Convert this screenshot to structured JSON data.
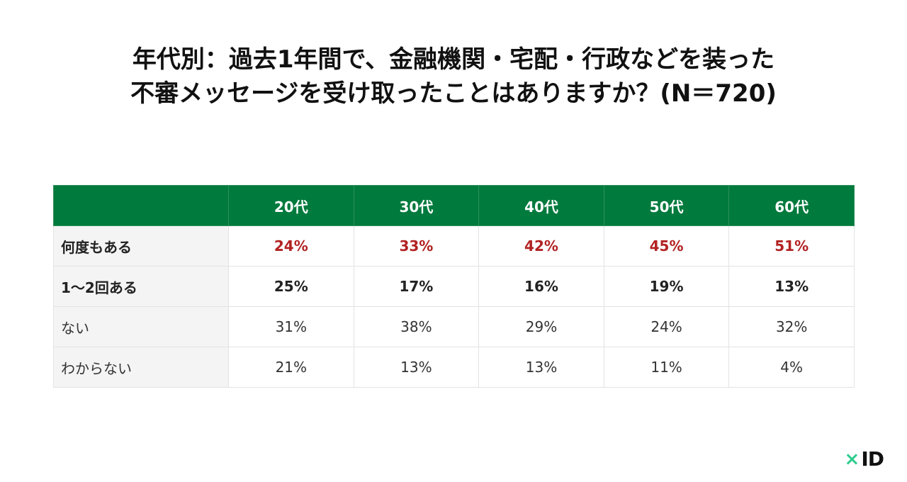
{
  "title": {
    "line1": "年代別：過去1年間で、金融機関・宅配・行政などを装った",
    "line2": "不審メッセージを受け取ったことはありますか？(N＝720)"
  },
  "chart_data": {
    "type": "table",
    "columns": [
      "20代",
      "30代",
      "40代",
      "50代",
      "60代"
    ],
    "rows": [
      {
        "label": "何度もある",
        "values": [
          "24%",
          "33%",
          "42%",
          "45%",
          "51%"
        ]
      },
      {
        "label": "1〜2回ある",
        "values": [
          "25%",
          "17%",
          "16%",
          "19%",
          "13%"
        ]
      },
      {
        "label": "ない",
        "values": [
          "31%",
          "38%",
          "29%",
          "24%",
          "32%"
        ]
      },
      {
        "label": "わからない",
        "values": [
          "21%",
          "13%",
          "13%",
          "11%",
          "4%"
        ]
      }
    ]
  },
  "colors": {
    "header_bg": "#007a3d",
    "highlight_text": "#b22222",
    "logo_accent": "#2ecc8f"
  },
  "logo": {
    "mark": "×",
    "text": "ID"
  }
}
